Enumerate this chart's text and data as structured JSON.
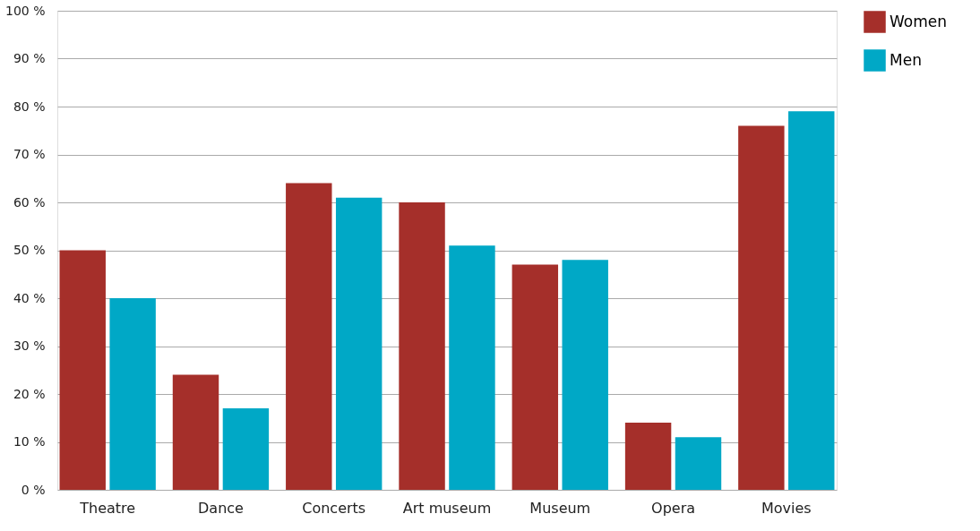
{
  "chart_data": {
    "type": "bar",
    "categories": [
      "Theatre",
      "Dance",
      "Concerts",
      "Art museum",
      "Museum",
      "Opera",
      "Movies"
    ],
    "series": [
      {
        "name": "Women",
        "color": "#a52f2a",
        "values": [
          50,
          24,
          64,
          60,
          47,
          14,
          76
        ]
      },
      {
        "name": "Men",
        "color": "#00a8c6",
        "values": [
          40,
          17,
          61,
          51,
          48,
          11,
          79
        ]
      }
    ],
    "ylim": [
      0,
      100
    ],
    "yticks": [
      {
        "value": 0,
        "label": "0 %"
      },
      {
        "value": 10,
        "label": "10 %"
      },
      {
        "value": 20,
        "label": "20 %"
      },
      {
        "value": 30,
        "label": "30 %"
      },
      {
        "value": 40,
        "label": "40 %"
      },
      {
        "value": 50,
        "label": "50 %"
      },
      {
        "value": 60,
        "label": "60 %"
      },
      {
        "value": 70,
        "label": "70 %"
      },
      {
        "value": 80,
        "label": "80 %"
      },
      {
        "value": 90,
        "label": "90 %"
      },
      {
        "value": 100,
        "label": "100 %"
      }
    ],
    "grid": "y",
    "legend": "top right"
  }
}
